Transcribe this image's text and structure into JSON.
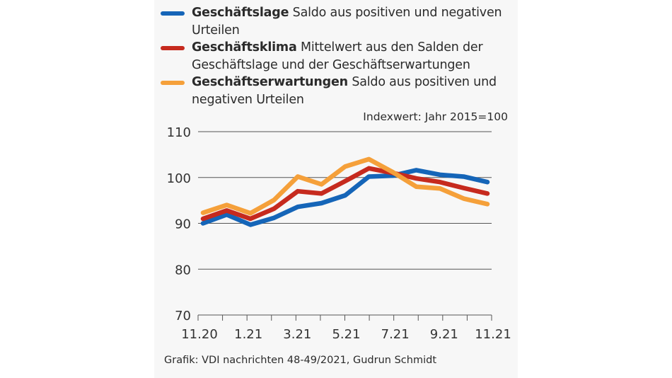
{
  "legend": [
    {
      "name": "Geschäftslage",
      "description": "Saldo aus positiven und negativen Urteilen",
      "color": "#1565b8"
    },
    {
      "name": "Geschäftsklima",
      "description": "Mittelwert aus den Salden der Geschäftslage und der Geschäftserwartungen",
      "color": "#c62a1e"
    },
    {
      "name": "Geschäftserwartungen",
      "description": "Saldo aus positiven und negativen Urteilen",
      "color": "#f5a03a"
    }
  ],
  "unit_note": "Indexwert: Jahr 2015=100",
  "source": "Grafik: VDI nachrichten 48-49/2021, Gudrun Schmidt",
  "chart_data": {
    "type": "line",
    "title": "",
    "xlabel": "",
    "ylabel": "Indexwert: Jahr 2015=100",
    "x": [
      "11.20",
      "12.20",
      "1.21",
      "2.21",
      "3.21",
      "4.21",
      "5.21",
      "6.21",
      "7.21",
      "8.21",
      "9.21",
      "10.21",
      "11.21"
    ],
    "x_tick_labels": [
      "11.20",
      "1.21",
      "3.21",
      "5.21",
      "7.21",
      "9.21",
      "11.21"
    ],
    "y_ticks": [
      70,
      80,
      90,
      100,
      110
    ],
    "ylim": [
      70,
      110
    ],
    "grid": true,
    "legend_position": "top",
    "series": [
      {
        "name": "Geschäftslage",
        "color": "#1565b8",
        "values": [
          90.0,
          91.9,
          89.7,
          91.2,
          93.6,
          94.4,
          96.1,
          100.2,
          100.4,
          101.6,
          100.6,
          100.2,
          99.0
        ]
      },
      {
        "name": "Geschäftsklima",
        "color": "#c62a1e",
        "values": [
          91.0,
          92.8,
          91.0,
          93.2,
          97.0,
          96.5,
          99.2,
          102.0,
          101.0,
          99.8,
          99.0,
          97.7,
          96.5
        ]
      },
      {
        "name": "Geschäftserwartungen",
        "color": "#f5a03a",
        "values": [
          92.3,
          94.0,
          92.2,
          95.1,
          100.2,
          98.5,
          102.4,
          104.0,
          101.2,
          98.0,
          97.6,
          95.4,
          94.2
        ]
      }
    ]
  }
}
